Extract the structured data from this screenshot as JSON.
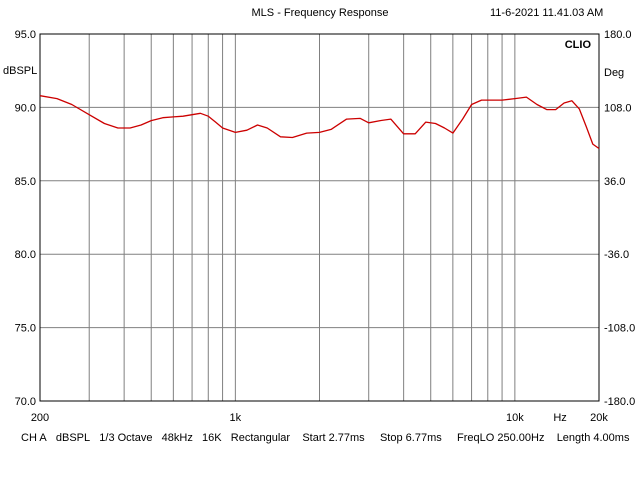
{
  "header": {
    "title": "MLS - Frequency Response",
    "timestamp": "11-6-2021 11.41.03 AM",
    "brand": "CLIO"
  },
  "footer": {
    "items": [
      "CH A",
      "dBSPL",
      "1/3 Octave",
      "48kHz",
      "16K",
      "Rectangular",
      "Start 2.77ms",
      "Stop 6.77ms",
      "FreqLO 250.00Hz",
      "Length 4.00ms"
    ]
  },
  "colors": {
    "trace": "#cc0000",
    "grid": "#808080",
    "frame": "#000000"
  },
  "chart_data": {
    "type": "line",
    "title": "MLS - Frequency Response",
    "xlabel": "Hz",
    "ylabel": "dBSPL",
    "y2label": "Deg",
    "xscale": "log",
    "xlim": [
      200,
      20000
    ],
    "ylim": [
      70,
      95
    ],
    "y2lim": [
      -180,
      180
    ],
    "grid": true,
    "x_ticks": [
      {
        "value": 200,
        "label": "200"
      },
      {
        "value": 1000,
        "label": "1k"
      },
      {
        "value": 10000,
        "label": "10k"
      },
      {
        "value": 20000,
        "label": "20k"
      }
    ],
    "y_ticks": [
      {
        "value": 95,
        "label": "95.0"
      },
      {
        "value": 90,
        "label": "90.0"
      },
      {
        "value": 85,
        "label": "85.0"
      },
      {
        "value": 80,
        "label": "80.0"
      },
      {
        "value": 75,
        "label": "75.0"
      },
      {
        "value": 70,
        "label": "70.0"
      }
    ],
    "y2_ticks": [
      {
        "value": 180,
        "label": "180.0"
      },
      {
        "value": 108,
        "label": "108.0"
      },
      {
        "value": 36,
        "label": "36.0"
      },
      {
        "value": -36,
        "label": "-36.0"
      },
      {
        "value": -108,
        "label": "-108.0"
      },
      {
        "value": -180,
        "label": "-180.0"
      }
    ],
    "series": [
      {
        "color": "#cc0000",
        "x": [
          200,
          230,
          260,
          300,
          340,
          380,
          420,
          460,
          500,
          550,
          600,
          650,
          700,
          750,
          800,
          850,
          900,
          1000,
          1100,
          1200,
          1300,
          1450,
          1600,
          1800,
          2000,
          2200,
          2500,
          2800,
          3000,
          3300,
          3600,
          4000,
          4400,
          4800,
          5200,
          5600,
          6000,
          6500,
          7000,
          7600,
          8200,
          9000,
          10000,
          11000,
          12000,
          13000,
          14000,
          15000,
          16000,
          17000,
          18000,
          19000,
          20000
        ],
        "y": [
          90.8,
          90.6,
          90.2,
          89.5,
          88.9,
          88.6,
          88.6,
          88.8,
          89.1,
          89.3,
          89.35,
          89.4,
          89.5,
          89.6,
          89.4,
          89.0,
          88.6,
          88.3,
          88.45,
          88.8,
          88.6,
          88.0,
          87.95,
          88.25,
          88.3,
          88.5,
          89.2,
          89.25,
          88.95,
          89.1,
          89.2,
          88.2,
          88.2,
          89.0,
          88.9,
          88.6,
          88.25,
          89.2,
          90.2,
          90.5,
          90.5,
          90.5,
          90.6,
          90.7,
          90.2,
          89.85,
          89.85,
          90.3,
          90.45,
          89.9,
          88.7,
          87.5,
          87.2
        ]
      }
    ]
  }
}
